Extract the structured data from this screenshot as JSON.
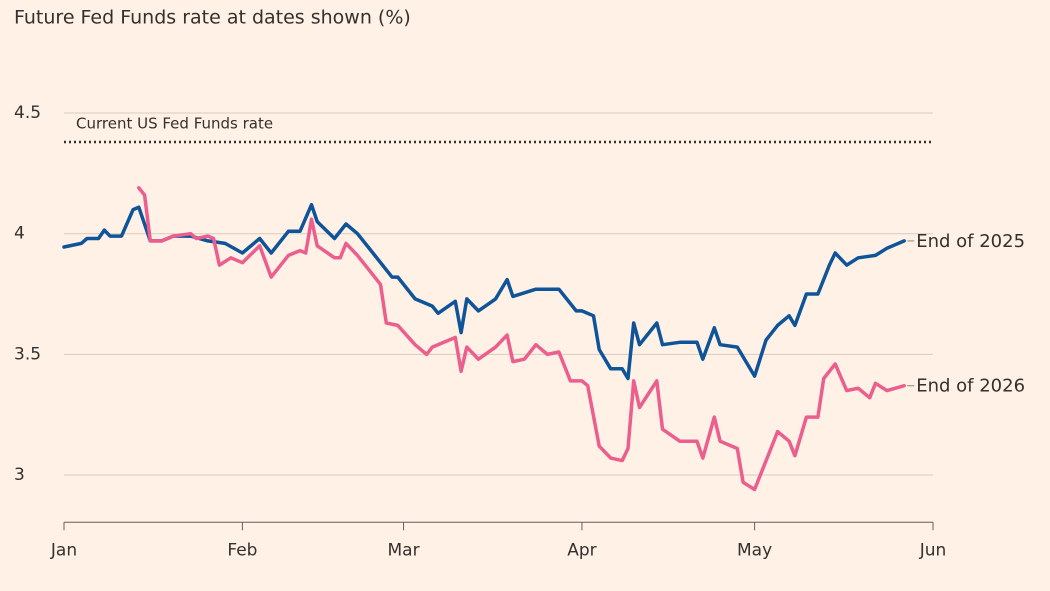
{
  "chart_data": {
    "type": "line",
    "title": "Future Fed Funds rate at dates shown (%)",
    "xlim": [
      0,
      151
    ],
    "xticks": [
      {
        "value": 0,
        "label": "Jan"
      },
      {
        "value": 31,
        "label": "Feb"
      },
      {
        "value": 59,
        "label": "Mar"
      },
      {
        "value": 90,
        "label": "Apr"
      },
      {
        "value": 120,
        "label": "May"
      },
      {
        "value": 151,
        "label": "Jun"
      }
    ],
    "ylim": [
      2.8,
      4.6
    ],
    "yticks": [
      3,
      3.5,
      4,
      4.5
    ],
    "grid": true,
    "reference_line": {
      "label": "Current US Fed Funds rate",
      "value": 4.38
    },
    "series": [
      {
        "name": "End of 2025",
        "color": "#0f5499",
        "x": [
          0,
          3,
          4,
          6,
          7,
          8,
          10,
          12,
          13,
          15,
          17,
          19,
          22,
          25,
          28,
          31,
          34,
          36,
          39,
          41,
          43,
          44,
          47,
          49,
          51,
          54,
          57,
          58,
          61,
          64,
          65,
          68,
          69,
          70,
          72,
          75,
          77,
          78,
          82,
          84,
          86,
          89,
          90,
          92,
          93,
          95,
          97,
          98,
          99,
          100,
          103,
          104,
          107,
          110,
          111,
          113,
          114,
          117,
          120,
          122,
          124,
          126,
          127,
          129,
          131,
          133,
          134,
          136,
          138,
          141,
          143,
          146
        ],
        "values": [
          3.945,
          3.96,
          3.98,
          3.98,
          4.015,
          3.99,
          3.99,
          4.1,
          4.11,
          3.97,
          3.97,
          3.99,
          3.99,
          3.97,
          3.96,
          3.92,
          3.98,
          3.92,
          4.01,
          4.01,
          4.12,
          4.05,
          3.98,
          4.04,
          4.0,
          3.91,
          3.82,
          3.82,
          3.73,
          3.7,
          3.67,
          3.72,
          3.59,
          3.73,
          3.68,
          3.73,
          3.81,
          3.74,
          3.77,
          3.77,
          3.77,
          3.68,
          3.68,
          3.66,
          3.52,
          3.44,
          3.44,
          3.4,
          3.63,
          3.54,
          3.63,
          3.54,
          3.55,
          3.55,
          3.48,
          3.61,
          3.54,
          3.53,
          3.41,
          3.56,
          3.62,
          3.66,
          3.62,
          3.75,
          3.75,
          3.87,
          3.92,
          3.87,
          3.9,
          3.91,
          3.94,
          3.97
        ]
      },
      {
        "name": "End of 2026",
        "color": "#eb5e8d",
        "x": [
          13,
          14,
          15,
          17,
          19,
          22,
          23,
          25,
          26,
          27,
          29,
          31,
          34,
          36,
          39,
          41,
          42,
          43,
          44,
          47,
          48,
          49,
          51,
          55,
          56,
          58,
          61,
          63,
          64,
          66,
          68,
          69,
          70,
          72,
          75,
          77,
          78,
          80,
          82,
          84,
          86,
          88,
          90,
          91,
          93,
          95,
          97,
          98,
          99,
          100,
          103,
          104,
          107,
          110,
          111,
          113,
          114,
          117,
          118,
          120,
          122,
          124,
          126,
          127,
          129,
          131,
          132,
          134,
          136,
          138,
          140,
          141,
          143,
          146
        ],
        "values": [
          4.19,
          4.16,
          3.97,
          3.97,
          3.99,
          4.0,
          3.98,
          3.99,
          3.98,
          3.87,
          3.9,
          3.88,
          3.95,
          3.82,
          3.91,
          3.93,
          3.92,
          4.06,
          3.95,
          3.9,
          3.9,
          3.96,
          3.91,
          3.79,
          3.63,
          3.62,
          3.54,
          3.5,
          3.53,
          3.55,
          3.57,
          3.43,
          3.53,
          3.48,
          3.53,
          3.58,
          3.47,
          3.48,
          3.54,
          3.5,
          3.51,
          3.39,
          3.39,
          3.37,
          3.12,
          3.07,
          3.06,
          3.11,
          3.39,
          3.28,
          3.39,
          3.19,
          3.14,
          3.14,
          3.07,
          3.24,
          3.14,
          3.11,
          2.97,
          2.94,
          3.06,
          3.18,
          3.14,
          3.08,
          3.24,
          3.24,
          3.4,
          3.46,
          3.35,
          3.36,
          3.32,
          3.38,
          3.35,
          3.37
        ]
      }
    ]
  }
}
